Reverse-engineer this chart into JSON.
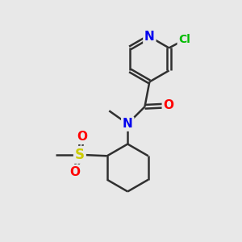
{
  "background_color": "#e8e8e8",
  "atom_colors": {
    "N": "#0000ee",
    "O": "#ff0000",
    "S": "#cccc00",
    "Cl": "#00bb00",
    "C": "#404040",
    "default": "#303030"
  },
  "bond_color": "#303030",
  "bond_width": 1.8,
  "font_size_atom": 10,
  "figsize": [
    3.0,
    3.0
  ],
  "dpi": 100,
  "xlim": [
    0,
    10
  ],
  "ylim": [
    0,
    10
  ]
}
